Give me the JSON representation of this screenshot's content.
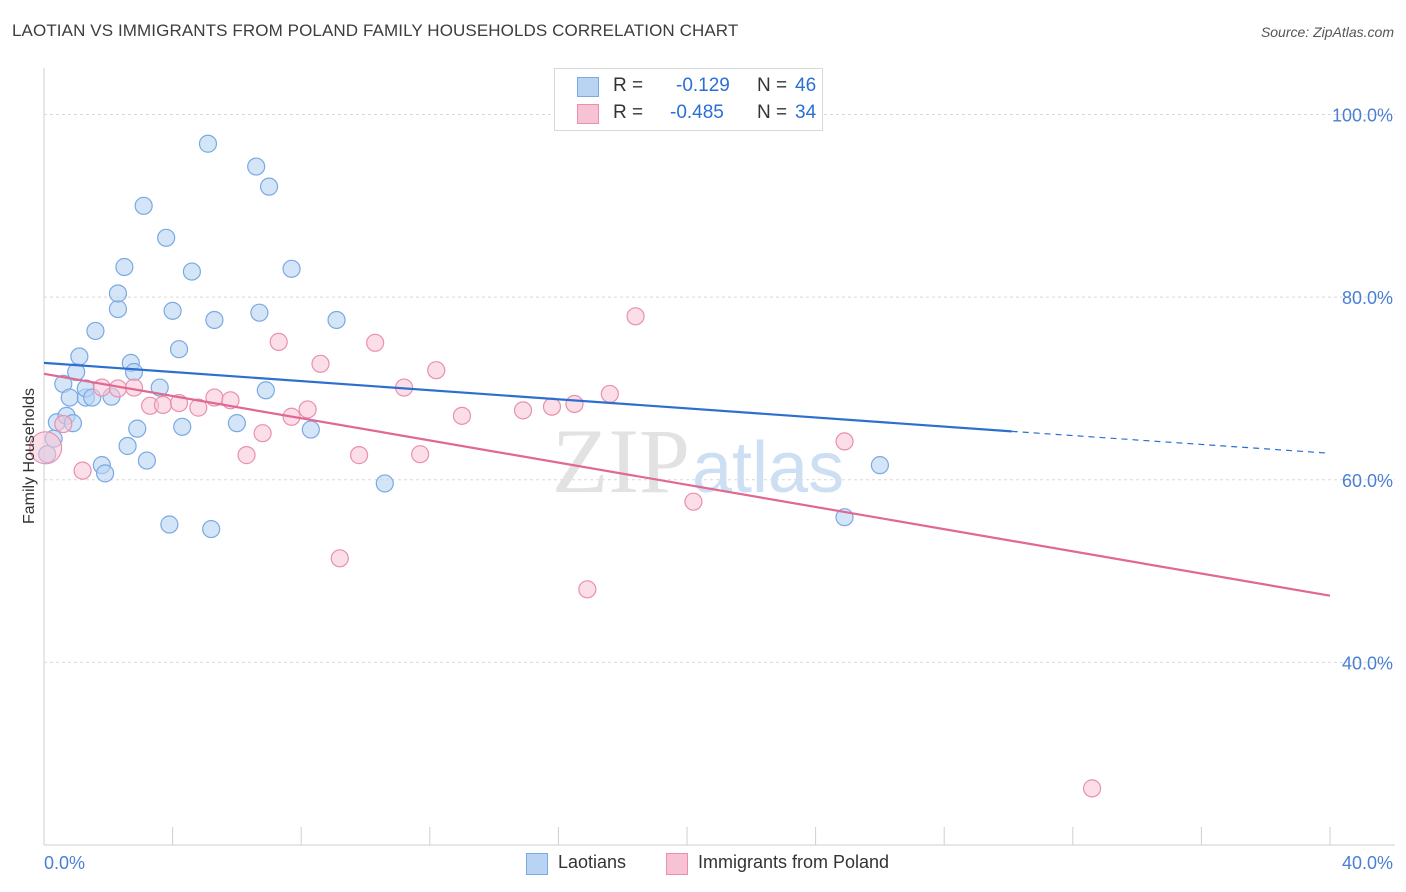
{
  "title": "LAOTIAN VS IMMIGRANTS FROM POLAND FAMILY HOUSEHOLDS CORRELATION CHART",
  "source": "Source: ZipAtlas.com",
  "watermark": {
    "zip": "ZIP",
    "atlas": "atlas"
  },
  "legend": {
    "laotians": {
      "r_label": "R =",
      "r_value": "-0.129",
      "n_label": "N =",
      "n_value": "46"
    },
    "poland": {
      "r_label": "R =",
      "r_value": "-0.485",
      "n_label": "N =",
      "n_value": "34"
    }
  },
  "bottom_legend": {
    "laotians": "Laotians",
    "poland": "Immigrants from Poland"
  },
  "colors": {
    "blue_fill": "#b9d3f3",
    "blue_stroke": "#7aa9e3",
    "blue_line": "#2d6fd1",
    "pink_fill": "#f7c3d4",
    "pink_stroke": "#e990ad",
    "pink_line": "#e06891",
    "tick_text": "#4a7fd4",
    "grid": "#d9d9d9"
  },
  "chart_data": {
    "type": "scatter",
    "title": "LAOTIAN VS IMMIGRANTS FROM POLAND FAMILY HOUSEHOLDS CORRELATION CHART",
    "xlabel": "",
    "ylabel": "Family Households",
    "xlim": [
      0,
      40
    ],
    "ylim": [
      20,
      104
    ],
    "x_tick_labels": [
      "0.0%",
      "40.0%"
    ],
    "y_ticks": [
      40,
      60,
      80,
      100
    ],
    "y_tick_labels": [
      "40.0%",
      "60.0%",
      "80.0%",
      "100.0%"
    ],
    "grid": true,
    "series": [
      {
        "name": "Laotians",
        "color": "#b9d3f3",
        "r": -0.129,
        "n": 46,
        "trend": {
          "x_start": 0,
          "y_start": 72.8,
          "x_end": 30.1,
          "y_end": 65.3,
          "dash_x_end": 40,
          "dash_y_end": 62.9
        },
        "points": [
          [
            0.1,
            62.8
          ],
          [
            0.3,
            64.5
          ],
          [
            0.4,
            66.3
          ],
          [
            0.6,
            70.5
          ],
          [
            0.7,
            67.0
          ],
          [
            0.8,
            69.0
          ],
          [
            0.9,
            66.2
          ],
          [
            1.0,
            71.8
          ],
          [
            1.1,
            73.5
          ],
          [
            1.3,
            69.0
          ],
          [
            1.3,
            70.0
          ],
          [
            1.5,
            69.0
          ],
          [
            1.6,
            76.3
          ],
          [
            1.8,
            61.6
          ],
          [
            1.9,
            60.7
          ],
          [
            2.1,
            69.1
          ],
          [
            2.3,
            78.7
          ],
          [
            2.3,
            80.4
          ],
          [
            2.5,
            83.3
          ],
          [
            2.6,
            63.7
          ],
          [
            2.7,
            72.8
          ],
          [
            2.8,
            71.8
          ],
          [
            2.9,
            65.6
          ],
          [
            3.1,
            90.0
          ],
          [
            3.2,
            62.1
          ],
          [
            3.6,
            70.1
          ],
          [
            3.8,
            86.5
          ],
          [
            3.9,
            55.1
          ],
          [
            4.0,
            78.5
          ],
          [
            4.2,
            74.3
          ],
          [
            4.3,
            65.8
          ],
          [
            4.6,
            82.8
          ],
          [
            5.1,
            96.8
          ],
          [
            5.2,
            54.6
          ],
          [
            5.3,
            77.5
          ],
          [
            6.0,
            66.2
          ],
          [
            6.6,
            94.3
          ],
          [
            6.7,
            78.3
          ],
          [
            6.9,
            69.8
          ],
          [
            7.0,
            92.1
          ],
          [
            7.7,
            83.1
          ],
          [
            8.3,
            65.5
          ],
          [
            9.1,
            77.5
          ],
          [
            10.6,
            59.6
          ],
          [
            24.9,
            55.9
          ],
          [
            26.0,
            61.6
          ]
        ]
      },
      {
        "name": "Immigrants from Poland",
        "color": "#f7c3d4",
        "r": -0.485,
        "n": 34,
        "trend": {
          "x_start": 0,
          "y_start": 71.6,
          "x_end": 40,
          "y_end": 47.3
        },
        "points": [
          [
            0.05,
            63.5
          ],
          [
            0.6,
            66.1
          ],
          [
            1.2,
            61.0
          ],
          [
            1.8,
            70.1
          ],
          [
            2.3,
            70.0
          ],
          [
            2.8,
            70.1
          ],
          [
            3.3,
            68.1
          ],
          [
            3.7,
            68.2
          ],
          [
            4.2,
            68.4
          ],
          [
            4.8,
            67.9
          ],
          [
            5.3,
            69.0
          ],
          [
            5.8,
            68.7
          ],
          [
            6.3,
            62.7
          ],
          [
            6.8,
            65.1
          ],
          [
            7.3,
            75.1
          ],
          [
            7.7,
            66.9
          ],
          [
            8.2,
            67.7
          ],
          [
            8.6,
            72.7
          ],
          [
            9.2,
            51.4
          ],
          [
            9.8,
            62.7
          ],
          [
            10.3,
            75.0
          ],
          [
            11.2,
            70.1
          ],
          [
            11.7,
            62.8
          ],
          [
            12.2,
            72.0
          ],
          [
            13.0,
            67.0
          ],
          [
            14.9,
            67.6
          ],
          [
            15.8,
            68.0
          ],
          [
            16.5,
            68.3
          ],
          [
            16.9,
            48.0
          ],
          [
            17.6,
            69.4
          ],
          [
            18.4,
            77.9
          ],
          [
            20.2,
            57.6
          ],
          [
            24.9,
            64.2
          ],
          [
            32.6,
            26.2
          ]
        ]
      }
    ]
  }
}
